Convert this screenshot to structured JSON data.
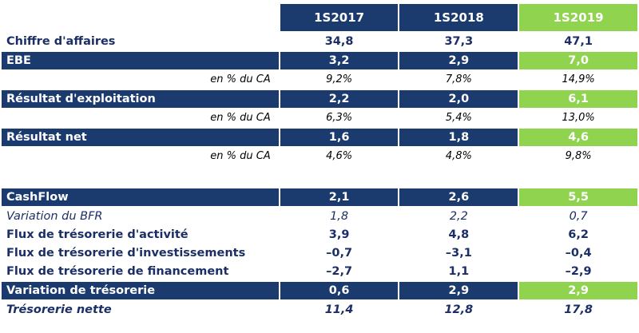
{
  "headers": [
    "1S2017",
    "1S2018",
    "1S2019"
  ],
  "rows": [
    {
      "label": "Chiffre d'affaires",
      "values": [
        "34,8",
        "37,3",
        "47,1"
      ]
    },
    {
      "label": "EBE",
      "values": [
        "3,2",
        "2,9",
        "7,0"
      ]
    },
    {
      "label": "en % du CA",
      "values": [
        "9,2%",
        "7,8%",
        "14,9%"
      ]
    },
    {
      "label": "Résultat d'exploitation",
      "values": [
        "2,2",
        "2,0",
        "6,1"
      ]
    },
    {
      "label": "en % du CA",
      "values": [
        "6,3%",
        "5,4%",
        "13,0%"
      ]
    },
    {
      "label": "Résultat net",
      "values": [
        "1,6",
        "1,8",
        "4,6"
      ]
    },
    {
      "label": "en % du CA",
      "values": [
        "4,6%",
        "4,8%",
        "9,8%"
      ]
    },
    {
      "label": "CashFlow",
      "values": [
        "2,1",
        "2,6",
        "5,5"
      ]
    },
    {
      "label": "Variation du BFR",
      "values": [
        "1,8",
        "2,2",
        "0,7"
      ]
    },
    {
      "label": "Flux de trésorerie d'activité",
      "values": [
        "3,9",
        "4,8",
        "6,2"
      ]
    },
    {
      "label": "Flux de trésorerie d'investissements",
      "values": [
        "–0,7",
        "–3,1",
        "–0,4"
      ]
    },
    {
      "label": "Flux de trésorerie de financement",
      "values": [
        "–2,7",
        "1,1",
        "–2,9"
      ]
    },
    {
      "label": "Variation de trésorerie",
      "values": [
        "0,6",
        "2,9",
        "2,9"
      ]
    },
    {
      "label": "Trésorerie nette",
      "values": [
        "11,4",
        "12,8",
        "17,8"
      ]
    }
  ],
  "colors": {
    "navy": "#1b3b6f",
    "green": "#8fd34f",
    "text": "#1b2f66"
  }
}
